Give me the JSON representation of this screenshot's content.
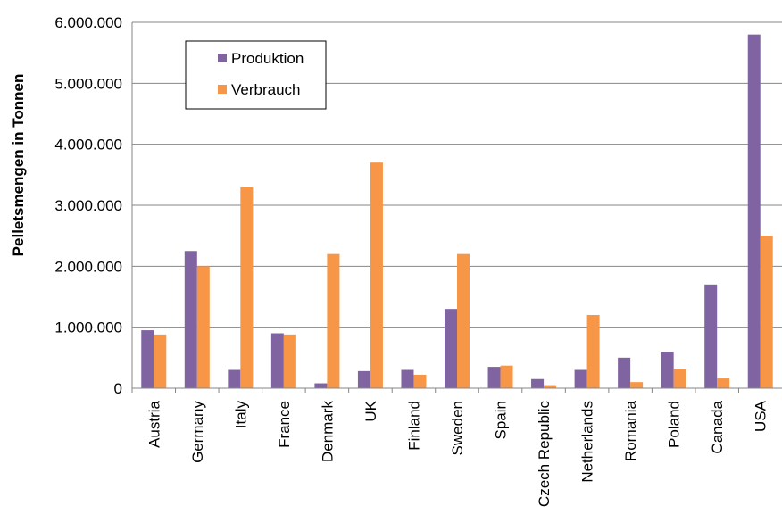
{
  "chart_data": {
    "type": "bar",
    "title": "",
    "xlabel": "",
    "ylabel": "Pelletsmengen in Tonnen",
    "ylim": [
      0,
      6000000
    ],
    "yticks": [
      {
        "value": 0,
        "label": "0"
      },
      {
        "value": 1000000,
        "label": "1.000.000"
      },
      {
        "value": 2000000,
        "label": "2.000.000"
      },
      {
        "value": 3000000,
        "label": "3.000.000"
      },
      {
        "value": 4000000,
        "label": "4.000.000"
      },
      {
        "value": 5000000,
        "label": "5.000.000"
      },
      {
        "value": 6000000,
        "label": "6.000.000"
      }
    ],
    "categories": [
      "Austria",
      "Germany",
      "Italy",
      "France",
      "Denmark",
      "UK",
      "Finland",
      "Sweden",
      "Spain",
      "Czech Republic",
      "Netherlands",
      "Romania",
      "Poland",
      "Canada",
      "USA"
    ],
    "series": [
      {
        "name": "Produktion",
        "color": "#8064a2",
        "values": [
          950000,
          2250000,
          300000,
          900000,
          80000,
          280000,
          300000,
          1300000,
          350000,
          150000,
          300000,
          500000,
          600000,
          1700000,
          5800000
        ]
      },
      {
        "name": "Verbrauch",
        "color": "#f79646",
        "values": [
          880000,
          2000000,
          3300000,
          880000,
          2200000,
          3700000,
          220000,
          2200000,
          370000,
          50000,
          1200000,
          100000,
          320000,
          160000,
          2500000
        ]
      }
    ],
    "grid": "horizontal",
    "legend": "top-left"
  }
}
